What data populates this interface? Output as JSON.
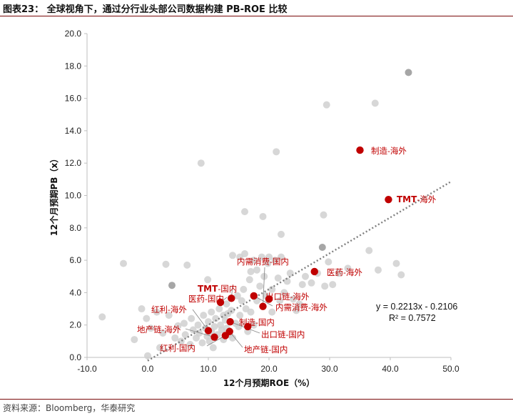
{
  "figure": {
    "title": "图表23：  全球视角下，通过分行业头部公司数据构建 PB-ROE 比较",
    "source": "资料来源：Bloomberg，华泰研究"
  },
  "chart_data": {
    "type": "scatter",
    "xlabel": "12个月预期ROE（%）",
    "ylabel": "12个月预期PB（x）",
    "xlim": [
      -10,
      50
    ],
    "ylim": [
      0,
      20
    ],
    "x_ticks": [
      "-10.0",
      "0.0",
      "10.0",
      "20.0",
      "30.0",
      "40.0",
      "50.0"
    ],
    "y_ticks": [
      "0.0",
      "2.0",
      "4.0",
      "6.0",
      "8.0",
      "10.0",
      "12.0",
      "14.0",
      "16.0",
      "18.0",
      "20.0"
    ],
    "trendline": {
      "slope": 0.2213,
      "intercept": -0.2106,
      "x_range": [
        0,
        50
      ],
      "equation": "y = 0.2213x - 0.2106",
      "r2": "R² = 0.7572"
    },
    "highlighted": [
      {
        "label": "制造-海外",
        "x": 35.0,
        "y": 12.8
      },
      {
        "label": "TMT-海外",
        "x": 39.7,
        "y": 9.75
      },
      {
        "label": "医药-海外",
        "x": 27.5,
        "y": 5.3
      },
      {
        "label": "内需消费-国内",
        "x": 19.0,
        "y": 3.15
      },
      {
        "label": "出口链-海外",
        "x": 20.0,
        "y": 3.6
      },
      {
        "label": "内需消费-海外",
        "x": 17.5,
        "y": 3.8
      },
      {
        "label": "TMT-国内",
        "x": 13.8,
        "y": 3.65
      },
      {
        "label": "医药-国内",
        "x": 12.0,
        "y": 3.4
      },
      {
        "label": "制造-国内",
        "x": 16.5,
        "y": 1.9
      },
      {
        "label": "出口链-国内",
        "x": 13.6,
        "y": 2.2
      },
      {
        "label": "红利-海外",
        "x": 10.0,
        "y": 1.65
      },
      {
        "label": "地产链-海外",
        "x": 11.0,
        "y": 1.25
      },
      {
        "label": "地产链-国内",
        "x": 13.5,
        "y": 1.6
      },
      {
        "label": "红利-国内",
        "x": 12.8,
        "y": 1.35
      }
    ],
    "annotations": {
      "manuf_overseas": "制造-海外",
      "tmt_overseas_prefix": "TMT",
      "tmt_overseas_suffix": "-海外",
      "pharma_overseas": "医药-海外",
      "consumer_domestic": "内需消费-国内",
      "export_overseas": "出口链-海外",
      "consumer_overseas": "内需消费-海外",
      "tmt_domestic_prefix": "TMT",
      "tmt_domestic_suffix": "-国内",
      "pharma_domestic": "医药-国内",
      "dividend_overseas": "红利-海外",
      "manuf_domestic": "制造-国内",
      "property_overseas": "地产链-海外",
      "export_domestic": "出口链-国内",
      "dividend_domestic": "红利-国内",
      "property_domestic": "地产链-国内"
    },
    "background_points": [
      [
        -7.5,
        2.5
      ],
      [
        -4,
        5.8
      ],
      [
        -2.2,
        1.1
      ],
      [
        -1,
        3.0
      ],
      [
        -0.2,
        2.4
      ],
      [
        0,
        0.1
      ],
      [
        0.5,
        1.8
      ],
      [
        1.5,
        2.8
      ],
      [
        2,
        0.6
      ],
      [
        2.5,
        1.5
      ],
      [
        3,
        5.75
      ],
      [
        3.5,
        2.6
      ],
      [
        4,
        4.45
      ],
      [
        4.5,
        1.2
      ],
      [
        5,
        1.95
      ],
      [
        5.5,
        1.0
      ],
      [
        6,
        2.1
      ],
      [
        6.5,
        5.7
      ],
      [
        6.2,
        1.4
      ],
      [
        7,
        0.8
      ],
      [
        7.2,
        2.4
      ],
      [
        7.5,
        1.7
      ],
      [
        8,
        1.2
      ],
      [
        8.3,
        2.0
      ],
      [
        8.5,
        1.5
      ],
      [
        8.8,
        12.0
      ],
      [
        9,
        0.9
      ],
      [
        9.2,
        2.6
      ],
      [
        9.5,
        1.8
      ],
      [
        9.8,
        1.3
      ],
      [
        9.9,
        4.8
      ],
      [
        10,
        2.2
      ],
      [
        10.2,
        1.0
      ],
      [
        10.5,
        2.8
      ],
      [
        10.5,
        1.6
      ],
      [
        10.8,
        0.6
      ],
      [
        11,
        1.9
      ],
      [
        11.2,
        2.4
      ],
      [
        11.5,
        1.4
      ],
      [
        11.8,
        3.0
      ],
      [
        12,
        2.0
      ],
      [
        12.2,
        1.7
      ],
      [
        12.5,
        2.6
      ],
      [
        12.5,
        1.1
      ],
      [
        12.8,
        2.3
      ],
      [
        13,
        3.3
      ],
      [
        13,
        1.8
      ],
      [
        13.2,
        2.7
      ],
      [
        13.5,
        1.4
      ],
      [
        13.8,
        2.9
      ],
      [
        14,
        6.3
      ],
      [
        14,
        1.2
      ],
      [
        14.5,
        2.1
      ],
      [
        14.8,
        3.8
      ],
      [
        15,
        1.9
      ],
      [
        15.2,
        6.2
      ],
      [
        15.2,
        2.6
      ],
      [
        15.5,
        3.5
      ],
      [
        15.8,
        4.2
      ],
      [
        16,
        6.4
      ],
      [
        16,
        9.0
      ],
      [
        16.2,
        3.0
      ],
      [
        16.5,
        1.6
      ],
      [
        16.8,
        4.8
      ],
      [
        17,
        5.3
      ],
      [
        17,
        2.8
      ],
      [
        17.5,
        6.0
      ],
      [
        17.5,
        2.0
      ],
      [
        18,
        5.4
      ],
      [
        18,
        3.5
      ],
      [
        18.5,
        4.4
      ],
      [
        18.8,
        6.2
      ],
      [
        19,
        8.7
      ],
      [
        19.2,
        5.0
      ],
      [
        19.5,
        3.8
      ],
      [
        19.8,
        5.8
      ],
      [
        20,
        6.2
      ],
      [
        20.5,
        4.2
      ],
      [
        20.5,
        2.8
      ],
      [
        21,
        6.0
      ],
      [
        21.2,
        12.7
      ],
      [
        21.5,
        4.9
      ],
      [
        21.8,
        3.5
      ],
      [
        22,
        7.6
      ],
      [
        22,
        6.2
      ],
      [
        22.5,
        4.0
      ],
      [
        23,
        4.7
      ],
      [
        23.5,
        5.2
      ],
      [
        24,
        3.6
      ],
      [
        24.5,
        2.9
      ],
      [
        25,
        3.3
      ],
      [
        25.5,
        4.5
      ],
      [
        26,
        5.0
      ],
      [
        27,
        4.6
      ],
      [
        28,
        5.2
      ],
      [
        28.8,
        6.8
      ],
      [
        29,
        8.8
      ],
      [
        29.2,
        4.4
      ],
      [
        29.5,
        15.6
      ],
      [
        29.8,
        5.9
      ],
      [
        30.5,
        4.5
      ],
      [
        31.5,
        5.2
      ],
      [
        33,
        5.5
      ],
      [
        36.5,
        6.6
      ],
      [
        37.5,
        15.7
      ],
      [
        38,
        5.4
      ],
      [
        41,
        5.8
      ],
      [
        41.8,
        5.1
      ],
      [
        43,
        17.6
      ]
    ]
  }
}
